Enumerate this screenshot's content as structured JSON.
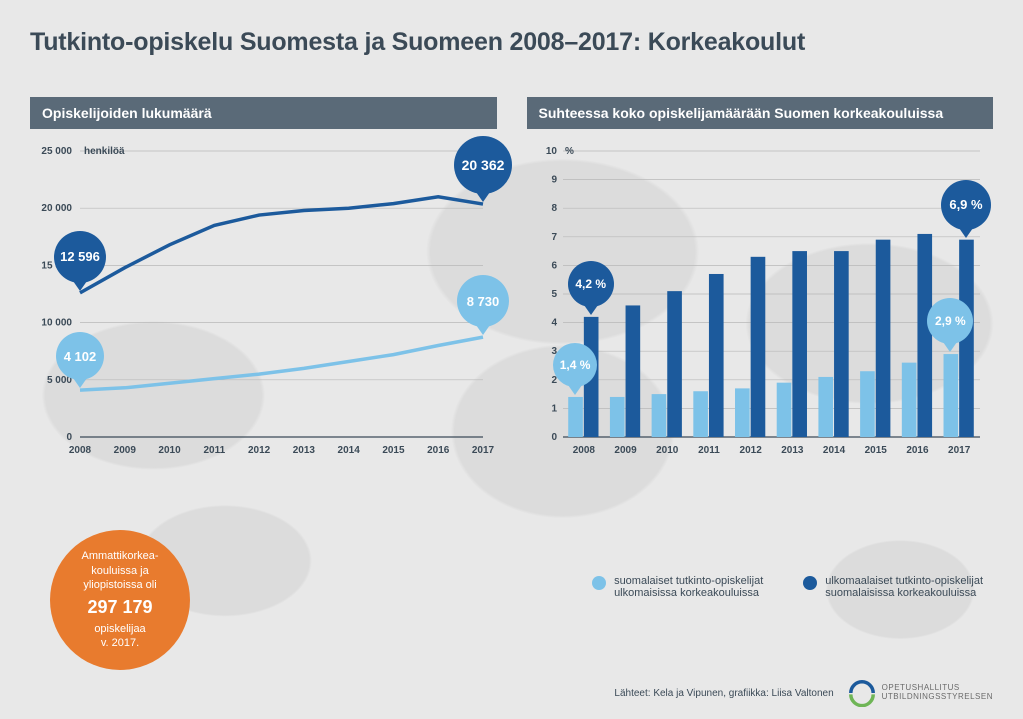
{
  "title": "Tutkinto-opiskelu Suomesta ja Suomeen 2008–2017: Korkeakoulut",
  "colors": {
    "title_text": "#3b4a57",
    "panel_header_bg": "#5a6a78",
    "panel_header_text": "#ffffff",
    "series_light": "#7dc2e8",
    "series_dark": "#1c5a9c",
    "axis_text": "#3b4a57",
    "grid": "#b8b8b8",
    "callout_bg": "#e87b2e",
    "bg": "#e8e8e8",
    "map_shade": "#d5d5d5"
  },
  "line_chart": {
    "title": "Opiskelijoiden lukumäärä",
    "type": "line",
    "x_categories": [
      "2008",
      "2009",
      "2010",
      "2011",
      "2012",
      "2013",
      "2014",
      "2015",
      "2016",
      "2017"
    ],
    "y_label_suffix": "henkilöä",
    "y_ticks": [
      0,
      5000,
      10000,
      15000,
      20000,
      25000
    ],
    "y_tick_labels": [
      "0",
      "5 000",
      "10 000",
      "15 000",
      "20 000",
      "25 000"
    ],
    "ylim": [
      0,
      25000
    ],
    "line_width": 3.5,
    "series": [
      {
        "name": "dark",
        "color": "#1c5a9c",
        "values": [
          12596,
          14800,
          16800,
          18500,
          19400,
          19800,
          20000,
          20400,
          21000,
          20362
        ]
      },
      {
        "name": "light",
        "color": "#7dc2e8",
        "values": [
          4102,
          4300,
          4700,
          5100,
          5500,
          6000,
          6600,
          7200,
          8000,
          8730
        ]
      }
    ],
    "bubbles": [
      {
        "series": "dark",
        "index": 0,
        "label": "12 596",
        "size": 52,
        "fontsize": 13
      },
      {
        "series": "dark",
        "index": 9,
        "label": "20 362",
        "size": 58,
        "fontsize": 14
      },
      {
        "series": "light",
        "index": 0,
        "label": "4 102",
        "size": 48,
        "fontsize": 13
      },
      {
        "series": "light",
        "index": 9,
        "label": "8 730",
        "size": 52,
        "fontsize": 13
      }
    ]
  },
  "bar_chart": {
    "title": "Suhteessa koko opiskelijamäärään Suomen korkeakouluissa",
    "type": "grouped-bar",
    "x_categories": [
      "2008",
      "2009",
      "2010",
      "2011",
      "2012",
      "2013",
      "2014",
      "2015",
      "2016",
      "2017"
    ],
    "y_unit": "%",
    "y_ticks": [
      0,
      1,
      2,
      3,
      4,
      5,
      6,
      7,
      8,
      9,
      10
    ],
    "ylim": [
      0,
      10
    ],
    "bar_group_gap_ratio": 0.25,
    "series": [
      {
        "name": "light",
        "color": "#7dc2e8",
        "values": [
          1.4,
          1.4,
          1.5,
          1.6,
          1.7,
          1.9,
          2.1,
          2.3,
          2.6,
          2.9
        ]
      },
      {
        "name": "dark",
        "color": "#1c5a9c",
        "values": [
          4.2,
          4.6,
          5.1,
          5.7,
          6.3,
          6.5,
          6.5,
          6.9,
          7.1,
          6.9
        ]
      }
    ],
    "bubbles": [
      {
        "series": "light",
        "index": 0,
        "label": "1,4 %",
        "size": 44,
        "fontsize": 12
      },
      {
        "series": "dark",
        "index": 0,
        "label": "4,2 %",
        "size": 46,
        "fontsize": 12
      },
      {
        "series": "light",
        "index": 9,
        "label": "2,9 %",
        "size": 46,
        "fontsize": 12
      },
      {
        "series": "dark",
        "index": 9,
        "label": "6,9 %",
        "size": 50,
        "fontsize": 13
      }
    ]
  },
  "callout": {
    "line1": "Ammattikorkea-",
    "line2": "kouluissa ja",
    "line3": "yliopistoissa oli",
    "number": "297 179",
    "line4": "opiskelijaa",
    "line5": "v. 2017."
  },
  "legend": {
    "light": {
      "label_l1": "suomalaiset tutkinto-opiskelijat",
      "label_l2": "ulkomaisissa korkeakouluissa"
    },
    "dark": {
      "label_l1": "ulkomaalaiset tutkinto-opiskelijat",
      "label_l2": "suomalaisissa korkeakouluissa"
    }
  },
  "footer": {
    "source": "Lähteet: Kela ja Vipunen, grafiikka: Liisa Valtonen",
    "org_l1": "OPETUSHALLITUS",
    "org_l2": "UTBILDNINGSSTYRELSEN"
  },
  "fonts": {
    "title_pt": 25,
    "panel_title_pt": 14,
    "axis_pt": 11,
    "legend_pt": 11,
    "footer_pt": 10
  }
}
